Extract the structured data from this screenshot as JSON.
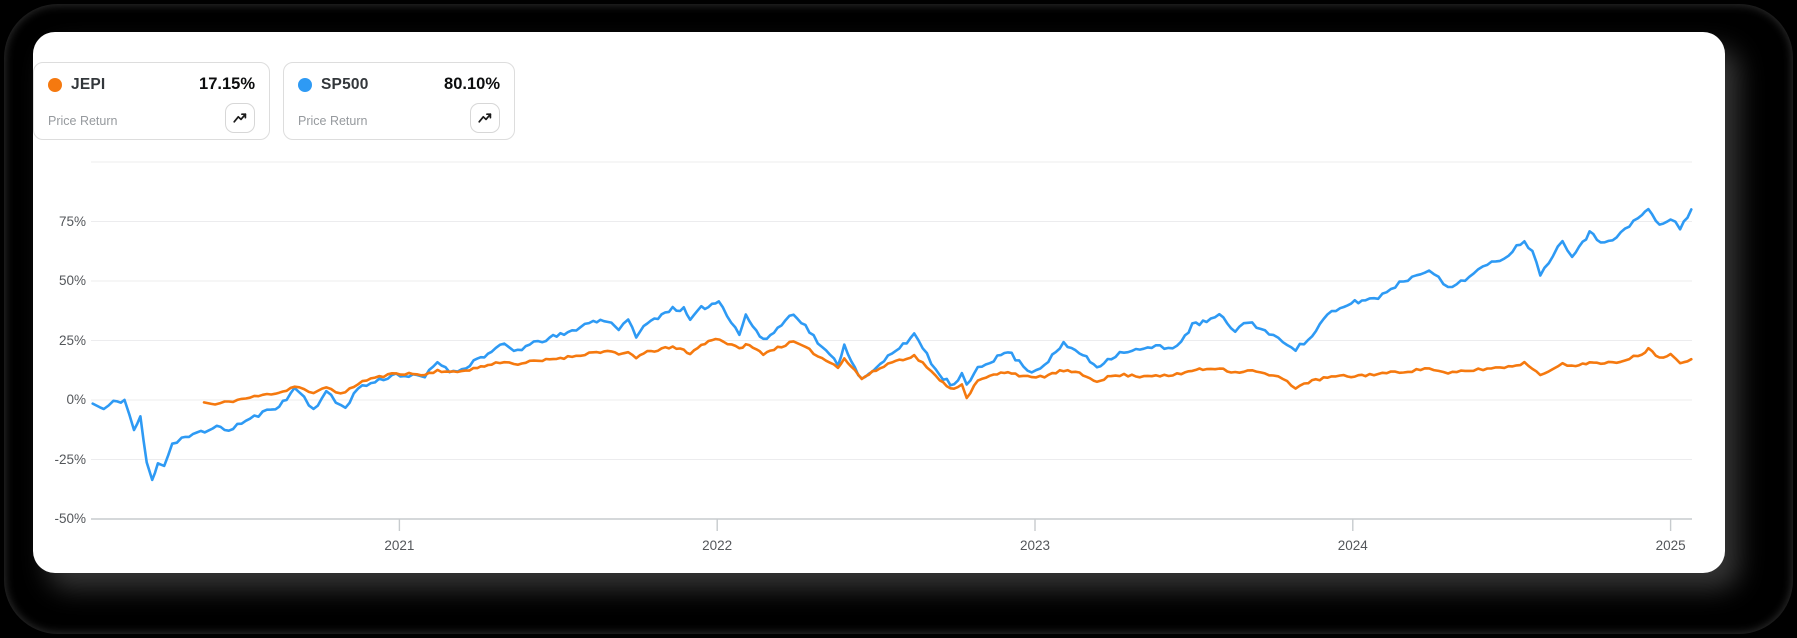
{
  "legend": {
    "cards": [
      {
        "ticker": "JEPI",
        "value": "17.15%",
        "metric": "Price Return",
        "dot_color": "#F5790F"
      },
      {
        "ticker": "SP500",
        "value": "80.10%",
        "metric": "Price Return",
        "dot_color": "#2E9AF4"
      }
    ]
  },
  "chart_data": {
    "type": "line",
    "title": "",
    "xlabel": "",
    "ylabel": "",
    "grid": true,
    "legend_position": "top-left",
    "x_range": [
      2020.03,
      2025.09
    ],
    "y_range": [
      -50,
      100
    ],
    "x_ticks": [
      {
        "value": 2021,
        "label": "2021"
      },
      {
        "value": 2022,
        "label": "2022"
      },
      {
        "value": 2023,
        "label": "2023"
      },
      {
        "value": 2024,
        "label": "2024"
      },
      {
        "value": 2025,
        "label": "2025"
      }
    ],
    "y_ticks": [
      {
        "value": 75,
        "label": "75%"
      },
      {
        "value": 50,
        "label": "50%"
      },
      {
        "value": 25,
        "label": "25%"
      },
      {
        "value": 0,
        "label": "0%"
      },
      {
        "value": -25,
        "label": "-25%"
      },
      {
        "value": -50,
        "label": "-50%"
      }
    ],
    "y_gridlines": [
      100,
      75,
      50,
      25,
      0,
      -25,
      -50
    ],
    "series": [
      {
        "name": "JEPI",
        "color": "#F5790F",
        "final_value_pct": 17.15,
        "points": [
          [
            2020.385,
            -1
          ],
          [
            2020.42,
            -2
          ],
          [
            2020.45,
            -1
          ],
          [
            2020.49,
            0
          ],
          [
            2020.53,
            1
          ],
          [
            2020.57,
            2
          ],
          [
            2020.61,
            3
          ],
          [
            2020.645,
            4
          ],
          [
            2020.67,
            6
          ],
          [
            2020.7,
            4.5
          ],
          [
            2020.73,
            2.5
          ],
          [
            2020.77,
            5.5
          ],
          [
            2020.8,
            3.5
          ],
          [
            2020.83,
            3
          ],
          [
            2020.87,
            7
          ],
          [
            2020.91,
            9
          ],
          [
            2020.95,
            10
          ],
          [
            2020.99,
            11.3
          ],
          [
            2021.03,
            11
          ],
          [
            2021.08,
            10.5
          ],
          [
            2021.12,
            12.5
          ],
          [
            2021.17,
            11.5
          ],
          [
            2021.245,
            13.5
          ],
          [
            2021.29,
            15
          ],
          [
            2021.33,
            16.3
          ],
          [
            2021.36,
            15
          ],
          [
            2021.41,
            16
          ],
          [
            2021.45,
            16.5
          ],
          [
            2021.495,
            17.5
          ],
          [
            2021.53,
            18
          ],
          [
            2021.57,
            19
          ],
          [
            2021.61,
            20
          ],
          [
            2021.655,
            20.5
          ],
          [
            2021.69,
            19
          ],
          [
            2021.72,
            20
          ],
          [
            2021.745,
            18
          ],
          [
            2021.78,
            20
          ],
          [
            2021.825,
            21.5
          ],
          [
            2021.86,
            22
          ],
          [
            2021.895,
            21
          ],
          [
            2021.915,
            19.5
          ],
          [
            2021.95,
            23
          ],
          [
            2021.995,
            26.1
          ],
          [
            2022.07,
            21.5
          ],
          [
            2022.09,
            23.5
          ],
          [
            2022.145,
            19.5
          ],
          [
            2022.19,
            22
          ],
          [
            2022.24,
            24.5
          ],
          [
            2022.29,
            21
          ],
          [
            2022.33,
            17.5
          ],
          [
            2022.38,
            14
          ],
          [
            2022.4,
            17.5
          ],
          [
            2022.455,
            9
          ],
          [
            2022.5,
            12.5
          ],
          [
            2022.55,
            16
          ],
          [
            2022.62,
            18.5
          ],
          [
            2022.66,
            14
          ],
          [
            2022.7,
            8
          ],
          [
            2022.745,
            4.5
          ],
          [
            2022.77,
            7
          ],
          [
            2022.785,
            1
          ],
          [
            2022.82,
            8
          ],
          [
            2022.87,
            10.5
          ],
          [
            2022.915,
            12
          ],
          [
            2022.95,
            10.5
          ],
          [
            2022.99,
            9.2
          ],
          [
            2023.03,
            10
          ],
          [
            2023.09,
            12.5
          ],
          [
            2023.14,
            11
          ],
          [
            2023.195,
            8
          ],
          [
            2023.24,
            10
          ],
          [
            2023.28,
            10.5
          ],
          [
            2023.33,
            10
          ],
          [
            2023.38,
            10.5
          ],
          [
            2023.42,
            10
          ],
          [
            2023.46,
            11
          ],
          [
            2023.495,
            12.5
          ],
          [
            2023.54,
            13
          ],
          [
            2023.58,
            13.5
          ],
          [
            2023.63,
            11.5
          ],
          [
            2023.67,
            12.5
          ],
          [
            2023.71,
            11.5
          ],
          [
            2023.75,
            10
          ],
          [
            2023.78,
            9
          ],
          [
            2023.82,
            5.2
          ],
          [
            2023.86,
            7.5
          ],
          [
            2023.92,
            9.5
          ],
          [
            2023.96,
            10
          ],
          [
            2023.995,
            9.9
          ],
          [
            2024.04,
            10.5
          ],
          [
            2024.08,
            11
          ],
          [
            2024.12,
            11.5
          ],
          [
            2024.16,
            12
          ],
          [
            2024.2,
            12.5
          ],
          [
            2024.24,
            13.5
          ],
          [
            2024.27,
            12
          ],
          [
            2024.3,
            11
          ],
          [
            2024.34,
            12
          ],
          [
            2024.38,
            12.5
          ],
          [
            2024.41,
            13
          ],
          [
            2024.45,
            13.5
          ],
          [
            2024.49,
            14
          ],
          [
            2024.54,
            15.5
          ],
          [
            2024.565,
            13.5
          ],
          [
            2024.59,
            10.5
          ],
          [
            2024.63,
            13.5
          ],
          [
            2024.66,
            15
          ],
          [
            2024.69,
            14
          ],
          [
            2024.745,
            16
          ],
          [
            2024.78,
            15
          ],
          [
            2024.83,
            16
          ],
          [
            2024.87,
            17.5
          ],
          [
            2024.91,
            19.5
          ],
          [
            2024.93,
            21.4
          ],
          [
            2024.965,
            18
          ],
          [
            2025.0,
            19
          ],
          [
            2025.03,
            16
          ],
          [
            2025.065,
            17.15
          ]
        ]
      },
      {
        "name": "SP500",
        "color": "#2E9AF4",
        "final_value_pct": 80.1,
        "points": [
          [
            2020.035,
            -1.5
          ],
          [
            2020.07,
            -4
          ],
          [
            2020.1,
            -1
          ],
          [
            2020.135,
            0
          ],
          [
            2020.165,
            -12.5
          ],
          [
            2020.185,
            -7.5
          ],
          [
            2020.205,
            -26.5
          ],
          [
            2020.222,
            -33.9
          ],
          [
            2020.24,
            -26
          ],
          [
            2020.26,
            -27.5
          ],
          [
            2020.285,
            -18.5
          ],
          [
            2020.315,
            -16
          ],
          [
            2020.35,
            -15
          ],
          [
            2020.375,
            -13.5
          ],
          [
            2020.4,
            -13
          ],
          [
            2020.425,
            -10
          ],
          [
            2020.45,
            -13.5
          ],
          [
            2020.49,
            -10.5
          ],
          [
            2020.53,
            -8
          ],
          [
            2020.57,
            -5.5
          ],
          [
            2020.61,
            -3
          ],
          [
            2020.645,
            0
          ],
          [
            2020.67,
            5.5
          ],
          [
            2020.7,
            1
          ],
          [
            2020.73,
            -4
          ],
          [
            2020.77,
            3.5
          ],
          [
            2020.8,
            -1
          ],
          [
            2020.83,
            -3
          ],
          [
            2020.87,
            5
          ],
          [
            2020.91,
            7
          ],
          [
            2020.95,
            9
          ],
          [
            2020.99,
            10.9
          ],
          [
            2021.03,
            10
          ],
          [
            2021.08,
            9.7
          ],
          [
            2021.12,
            16
          ],
          [
            2021.17,
            11.5
          ],
          [
            2021.21,
            14
          ],
          [
            2021.245,
            17.3
          ],
          [
            2021.29,
            20
          ],
          [
            2021.33,
            23.5
          ],
          [
            2021.36,
            20.5
          ],
          [
            2021.41,
            23
          ],
          [
            2021.45,
            25
          ],
          [
            2021.495,
            26.9
          ],
          [
            2021.53,
            28
          ],
          [
            2021.57,
            31
          ],
          [
            2021.61,
            33
          ],
          [
            2021.655,
            33.6
          ],
          [
            2021.69,
            30
          ],
          [
            2021.72,
            33
          ],
          [
            2021.745,
            27.2
          ],
          [
            2021.78,
            32
          ],
          [
            2021.825,
            36
          ],
          [
            2021.86,
            38.5
          ],
          [
            2021.895,
            38
          ],
          [
            2021.915,
            33.3
          ],
          [
            2021.95,
            38.5
          ],
          [
            2021.995,
            40.8
          ],
          [
            2022.005,
            41.6
          ],
          [
            2022.07,
            27.8
          ],
          [
            2022.09,
            35.5
          ],
          [
            2022.145,
            24.8
          ],
          [
            2022.19,
            30
          ],
          [
            2022.24,
            36.8
          ],
          [
            2022.29,
            29
          ],
          [
            2022.33,
            22
          ],
          [
            2022.38,
            15.2
          ],
          [
            2022.4,
            22.8
          ],
          [
            2022.455,
            8.3
          ],
          [
            2022.5,
            13
          ],
          [
            2022.55,
            20
          ],
          [
            2022.62,
            27.1
          ],
          [
            2022.66,
            19
          ],
          [
            2022.7,
            10
          ],
          [
            2022.745,
            5.9
          ],
          [
            2022.77,
            10.5
          ],
          [
            2022.785,
            5.6
          ],
          [
            2022.82,
            14
          ],
          [
            2022.87,
            17
          ],
          [
            2022.915,
            20.5
          ],
          [
            2022.95,
            16
          ],
          [
            2022.99,
            11.7
          ],
          [
            2023.03,
            15
          ],
          [
            2023.09,
            23.4
          ],
          [
            2023.14,
            20
          ],
          [
            2023.195,
            13.9
          ],
          [
            2023.24,
            18
          ],
          [
            2023.28,
            20.5
          ],
          [
            2023.33,
            21
          ],
          [
            2023.38,
            22.5
          ],
          [
            2023.42,
            21.5
          ],
          [
            2023.46,
            24.5
          ],
          [
            2023.495,
            31.4
          ],
          [
            2023.54,
            33
          ],
          [
            2023.58,
            35.5
          ],
          [
            2023.63,
            29
          ],
          [
            2023.67,
            33.3
          ],
          [
            2023.71,
            30
          ],
          [
            2023.75,
            26.5
          ],
          [
            2023.78,
            25
          ],
          [
            2023.82,
            21.6
          ],
          [
            2023.86,
            25
          ],
          [
            2023.92,
            35.7
          ],
          [
            2023.96,
            38
          ],
          [
            2023.995,
            40.9
          ],
          [
            2024.04,
            42
          ],
          [
            2024.08,
            43.1
          ],
          [
            2024.12,
            47
          ],
          [
            2024.16,
            50
          ],
          [
            2024.2,
            52.5
          ],
          [
            2024.24,
            55.2
          ],
          [
            2024.27,
            51
          ],
          [
            2024.3,
            46.7
          ],
          [
            2024.34,
            50
          ],
          [
            2024.38,
            53
          ],
          [
            2024.41,
            55.8
          ],
          [
            2024.45,
            58
          ],
          [
            2024.49,
            61.3
          ],
          [
            2024.54,
            67.4
          ],
          [
            2024.565,
            62
          ],
          [
            2024.59,
            53.2
          ],
          [
            2024.63,
            61
          ],
          [
            2024.66,
            66.8
          ],
          [
            2024.69,
            61
          ],
          [
            2024.745,
            70.2
          ],
          [
            2024.78,
            66.5
          ],
          [
            2024.83,
            68.5
          ],
          [
            2024.87,
            73
          ],
          [
            2024.91,
            78.1
          ],
          [
            2024.93,
            79.9
          ],
          [
            2024.965,
            73.3
          ],
          [
            2025.0,
            76
          ],
          [
            2025.03,
            72.1
          ],
          [
            2025.065,
            80.1
          ]
        ]
      }
    ]
  }
}
